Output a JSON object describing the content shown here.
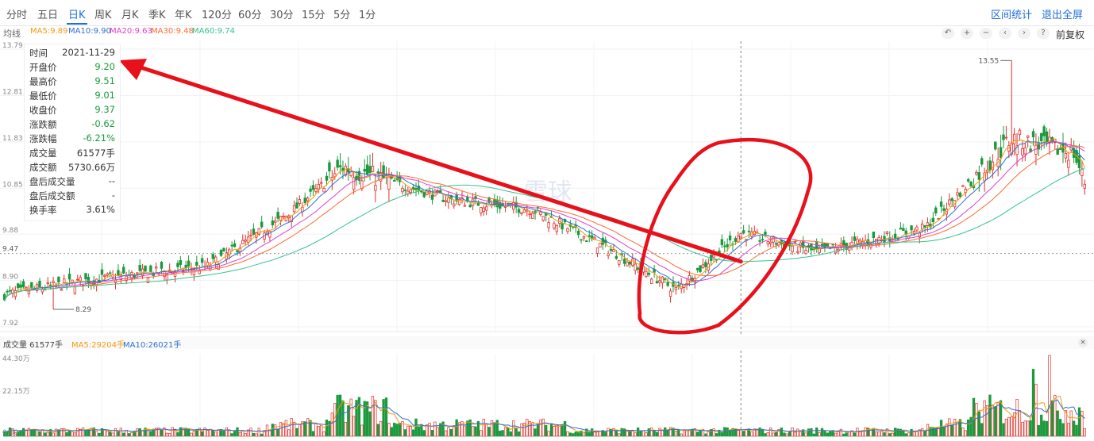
{
  "period_tabs": [
    "分时",
    "五日",
    "日K",
    "周K",
    "月K",
    "季K",
    "年K",
    "120分",
    "60分",
    "30分",
    "15分",
    "5分",
    "1分"
  ],
  "active_tab": "日K",
  "toolbar": {
    "interval_stats": "区间统计",
    "exit_fullscreen": "退出全屏",
    "adjust": "前复权"
  },
  "ma_labels": {
    "title": "均线",
    "ma5": "MA5:9.89",
    "ma10": "MA10:9.90",
    "ma20": "MA20:9.63",
    "ma30": "MA30:9.48",
    "ma60": "MA60:9.74"
  },
  "colors": {
    "ma5": "#f39c12",
    "ma10": "#2f6fd1",
    "ma20": "#e040c8",
    "ma30": "#ff6a33",
    "ma60": "#32c48d",
    "up": "#e0302d",
    "down": "#1a9a3c",
    "annotation": "#e8101a",
    "accent": "#1f6fd6"
  },
  "price_axis": {
    "ticks": [
      "13.79",
      "12.81",
      "11.83",
      "10.85",
      "9.88",
      "8.90",
      "7.92"
    ],
    "current": "9.47",
    "max_label": "13.55",
    "min_label": "8.29"
  },
  "info_box": {
    "rows": [
      {
        "k": "时间",
        "v": "2021-11-29",
        "c": "neutral"
      },
      {
        "k": "开盘价",
        "v": "9.20",
        "c": "down"
      },
      {
        "k": "最高价",
        "v": "9.51",
        "c": "down"
      },
      {
        "k": "最低价",
        "v": "9.01",
        "c": "down"
      },
      {
        "k": "收盘价",
        "v": "9.37",
        "c": "down"
      },
      {
        "k": "涨跌额",
        "v": "-0.62",
        "c": "down"
      },
      {
        "k": "涨跌幅",
        "v": "-6.21%",
        "c": "down"
      },
      {
        "k": "成交量",
        "v": "61577手",
        "c": "neutral"
      },
      {
        "k": "成交额",
        "v": "5730.66万",
        "c": "neutral"
      },
      {
        "k": "盘后成交量",
        "v": "--",
        "c": "neutral"
      },
      {
        "k": "盘后成交额",
        "v": "-",
        "c": "neutral"
      },
      {
        "k": "换手率",
        "v": "3.61%",
        "c": "neutral"
      }
    ]
  },
  "volume_head": {
    "label": "成交量 61577手",
    "ma5": "MA5:29204手",
    "ma10": "MA10:26021手"
  },
  "volume_axis": {
    "ticks": [
      "44.30万",
      "22.15万",
      "0.00"
    ]
  },
  "watermark": "雪球",
  "chart_data": {
    "type": "candlestick",
    "price_range": [
      7.92,
      13.79
    ],
    "volume_range_wan": [
      0,
      44.3
    ],
    "segments": [
      {
        "from": 0,
        "to": 30,
        "start": 8.6,
        "end": 8.9
      },
      {
        "from": 30,
        "to": 75,
        "start": 8.9,
        "end": 9.2
      },
      {
        "from": 75,
        "to": 105,
        "start": 9.2,
        "end": 10.3
      },
      {
        "from": 105,
        "to": 125,
        "start": 10.3,
        "end": 11.3
      },
      {
        "from": 125,
        "to": 165,
        "start": 11.3,
        "end": 10.6
      },
      {
        "from": 165,
        "to": 195,
        "start": 10.6,
        "end": 10.4
      },
      {
        "from": 195,
        "to": 225,
        "start": 10.4,
        "end": 9.5
      },
      {
        "from": 225,
        "to": 248,
        "start": 9.5,
        "end": 8.7
      },
      {
        "from": 248,
        "to": 272,
        "start": 8.7,
        "end": 9.9
      },
      {
        "from": 272,
        "to": 300,
        "start": 9.9,
        "end": 9.5
      },
      {
        "from": 300,
        "to": 340,
        "start": 9.5,
        "end": 10.0
      },
      {
        "from": 340,
        "to": 372,
        "start": 10.0,
        "end": 11.9
      },
      {
        "from": 372,
        "to": 395,
        "start": 11.9,
        "end": 11.6
      },
      {
        "from": 395,
        "to": 400,
        "start": 11.6,
        "end": 10.8
      }
    ],
    "candle_count": 400,
    "max_high": 13.55,
    "min_low": 8.29,
    "crosshair_date": "2021-11-29",
    "annotation": "red arrow from crosshair candle to info box; red circled region"
  }
}
